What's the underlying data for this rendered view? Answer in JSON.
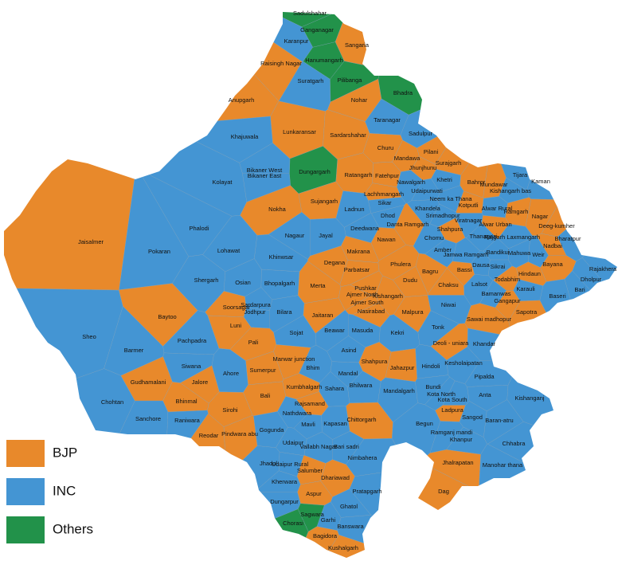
{
  "map": {
    "constituencies": [
      {
        "name": "Sadulshahar",
        "party": "Others"
      },
      {
        "name": "Ganganagar",
        "party": "Others"
      },
      {
        "name": "Karanpur",
        "party": "INC"
      },
      {
        "name": "Sangaria",
        "party": "BJP"
      },
      {
        "name": "Raisingh Nagar",
        "party": "BJP"
      },
      {
        "name": "Hanumangarh",
        "party": "Others"
      },
      {
        "name": "Suratgarh",
        "party": "INC"
      },
      {
        "name": "Pilibanga",
        "party": "Others"
      },
      {
        "name": "Bhadra",
        "party": "Others"
      },
      {
        "name": "Anupgarh",
        "party": "BJP"
      },
      {
        "name": "Nohar",
        "party": "BJP"
      },
      {
        "name": "Taranagar",
        "party": "INC"
      },
      {
        "name": "Lunkaransar",
        "party": "BJP"
      },
      {
        "name": "Sardarshahar",
        "party": "BJP"
      },
      {
        "name": "Sadulpur",
        "party": "INC"
      },
      {
        "name": "Khajuwala",
        "party": "INC"
      },
      {
        "name": "Churu",
        "party": "BJP"
      },
      {
        "name": "Pilani",
        "party": "BJP"
      },
      {
        "name": "Mandawa",
        "party": "BJP"
      },
      {
        "name": "Surajgarh",
        "party": "BJP"
      },
      {
        "name": "Jhunjhunu",
        "party": "BJP"
      },
      {
        "name": "Dungargarh",
        "party": "Others"
      },
      {
        "name": "Ratangarh",
        "party": "BJP"
      },
      {
        "name": "Fatehpur",
        "party": "BJP"
      },
      {
        "name": "Khetri",
        "party": "INC"
      },
      {
        "name": "Bikaner West",
        "party": "INC"
      },
      {
        "name": "Bikaner East",
        "party": "INC"
      },
      {
        "name": "Kolayat",
        "party": "INC"
      },
      {
        "name": "Nawalgarh",
        "party": "INC"
      },
      {
        "name": "Udaipurwati",
        "party": "INC"
      },
      {
        "name": "Tijara",
        "party": "INC"
      },
      {
        "name": "Mundawar",
        "party": "BJP"
      },
      {
        "name": "Bahror",
        "party": "BJP"
      },
      {
        "name": "Kishangarh bas",
        "party": "INC"
      },
      {
        "name": "Kaman",
        "party": "INC"
      },
      {
        "name": "Lachhmangarh",
        "party": "BJP"
      },
      {
        "name": "Neem ka Thana",
        "party": "INC"
      },
      {
        "name": "Kotputli",
        "party": "BJP"
      },
      {
        "name": "Alwar Rural",
        "party": "INC"
      },
      {
        "name": "Ramgarh",
        "party": "BJP"
      },
      {
        "name": "Nagar",
        "party": "BJP"
      },
      {
        "name": "Sujangarh",
        "party": "BJP"
      },
      {
        "name": "Ladnun",
        "party": "INC"
      },
      {
        "name": "Nokha",
        "party": "BJP"
      },
      {
        "name": "Sikar",
        "party": "INC"
      },
      {
        "name": "Khandela",
        "party": "INC"
      },
      {
        "name": "Dhod",
        "party": "INC"
      },
      {
        "name": "Srimadhopur",
        "party": "INC"
      },
      {
        "name": "Alwar Urban",
        "party": "BJP"
      },
      {
        "name": "Deeg-kumher",
        "party": "BJP"
      },
      {
        "name": "Danta Ramgarh",
        "party": "BJP"
      },
      {
        "name": "Viratnagar",
        "party": "INC"
      },
      {
        "name": "Jaisalmer",
        "party": "BJP"
      },
      {
        "name": "Phalodi",
        "party": "INC"
      },
      {
        "name": "Nagaur",
        "party": "INC"
      },
      {
        "name": "Jayal",
        "party": "INC"
      },
      {
        "name": "Deedwana",
        "party": "INC"
      },
      {
        "name": "Shahpura",
        "party": "BJP"
      },
      {
        "name": "Chomu",
        "party": "INC"
      },
      {
        "name": "Thanagazi",
        "party": "INC"
      },
      {
        "name": "Rajgarh Laxmangarh",
        "party": "INC"
      },
      {
        "name": "Bharatpur",
        "party": "INC"
      },
      {
        "name": "Pokaran",
        "party": "INC"
      },
      {
        "name": "Lohawat",
        "party": "INC"
      },
      {
        "name": "Nawan",
        "party": "BJP"
      },
      {
        "name": "Nadbai",
        "party": "BJP"
      },
      {
        "name": "Khinwsar",
        "party": "INC"
      },
      {
        "name": "Makrana",
        "party": "BJP"
      },
      {
        "name": "Jamwa Ramgarh",
        "party": "INC"
      },
      {
        "name": "Bandikui",
        "party": "INC"
      },
      {
        "name": "Mahuwa",
        "party": "INC"
      },
      {
        "name": "Weir",
        "party": "INC"
      },
      {
        "name": "Amber",
        "party": "INC"
      },
      {
        "name": "Degana",
        "party": "BJP"
      },
      {
        "name": "Phulera",
        "party": "BJP"
      },
      {
        "name": "Bassi",
        "party": "BJP"
      },
      {
        "name": "Dausa",
        "party": "INC"
      },
      {
        "name": "Sikrai",
        "party": "INC"
      },
      {
        "name": "Bayana",
        "party": "BJP"
      },
      {
        "name": "Rajakhera",
        "party": "INC"
      },
      {
        "name": "Shergarh",
        "party": "INC"
      },
      {
        "name": "Parbatsar",
        "party": "BJP"
      },
      {
        "name": "Bagru",
        "party": "BJP"
      },
      {
        "name": "Hindaun",
        "party": "BJP"
      },
      {
        "name": "Dholpur",
        "party": "INC"
      },
      {
        "name": "Osian",
        "party": "INC"
      },
      {
        "name": "Bhopalgarh",
        "party": "INC"
      },
      {
        "name": "Merta",
        "party": "BJP"
      },
      {
        "name": "Dudu",
        "party": "BJP"
      },
      {
        "name": "Todabhim",
        "party": "BJP"
      },
      {
        "name": "Chaksu",
        "party": "BJP"
      },
      {
        "name": "Lalsot",
        "party": "INC"
      },
      {
        "name": "Bari",
        "party": "INC"
      },
      {
        "name": "Pushkar",
        "party": "BJP"
      },
      {
        "name": "Ajmer North",
        "party": "BJP"
      },
      {
        "name": "Kishangarh",
        "party": "BJP"
      },
      {
        "name": "Bamanwas",
        "party": "INC"
      },
      {
        "name": "Karauli",
        "party": "INC"
      },
      {
        "name": "Baseri",
        "party": "INC"
      },
      {
        "name": "Ajmer South",
        "party": "BJP"
      },
      {
        "name": "Gangapur",
        "party": "BJP"
      },
      {
        "name": "Nasirabad",
        "party": "BJP"
      },
      {
        "name": "Soorsagar",
        "party": "BJP"
      },
      {
        "name": "Sardarpura",
        "party": "INC"
      },
      {
        "name": "Jodhpur",
        "party": "INC"
      },
      {
        "name": "Bilara",
        "party": "INC"
      },
      {
        "name": "Jaitaran",
        "party": "BJP"
      },
      {
        "name": "Malpura",
        "party": "BJP"
      },
      {
        "name": "Niwai",
        "party": "INC"
      },
      {
        "name": "Sawai madhopur",
        "party": "BJP"
      },
      {
        "name": "Sapotra",
        "party": "BJP"
      },
      {
        "name": "Baytoo",
        "party": "BJP"
      },
      {
        "name": "Luni",
        "party": "BJP"
      },
      {
        "name": "Sojat",
        "party": "INC"
      },
      {
        "name": "Beawar",
        "party": "INC"
      },
      {
        "name": "Masuda",
        "party": "INC"
      },
      {
        "name": "Kekri",
        "party": "INC"
      },
      {
        "name": "Tonk",
        "party": "INC"
      },
      {
        "name": "Sheo",
        "party": "INC"
      },
      {
        "name": "Pachpadra",
        "party": "INC"
      },
      {
        "name": "Pali",
        "party": "BJP"
      },
      {
        "name": "Deoli - uniara",
        "party": "BJP"
      },
      {
        "name": "Khandar",
        "party": "INC"
      },
      {
        "name": "Barmer",
        "party": "INC"
      },
      {
        "name": "Asind",
        "party": "INC"
      },
      {
        "name": "Marwar junction",
        "party": "BJP"
      },
      {
        "name": "Bhim",
        "party": "INC"
      },
      {
        "name": "Siwana",
        "party": "INC"
      },
      {
        "name": "Ahore",
        "party": "INC"
      },
      {
        "name": "Sumerpur",
        "party": "BJP"
      },
      {
        "name": "Shahpura",
        "party": "BJP"
      },
      {
        "name": "Jahazpur",
        "party": "BJP"
      },
      {
        "name": "Hindoli",
        "party": "INC"
      },
      {
        "name": "Kesholaipatan",
        "party": "INC"
      },
      {
        "name": "Mandal",
        "party": "INC"
      },
      {
        "name": "Pipalda",
        "party": "INC"
      },
      {
        "name": "Gudhamalani",
        "party": "BJP"
      },
      {
        "name": "Jalore",
        "party": "BJP"
      },
      {
        "name": "Bundi",
        "party": "INC"
      },
      {
        "name": "Sahara",
        "party": "INC"
      },
      {
        "name": "Bhilwara",
        "party": "INC"
      },
      {
        "name": "Kumbhalgarh",
        "party": "BJP"
      },
      {
        "name": "Mandalgarh",
        "party": "INC"
      },
      {
        "name": "Anta",
        "party": "INC"
      },
      {
        "name": "Kishanganj",
        "party": "INC"
      },
      {
        "name": "Bhinmal",
        "party": "BJP"
      },
      {
        "name": "Bali",
        "party": "BJP"
      },
      {
        "name": "Kota North",
        "party": "INC"
      },
      {
        "name": "Kota South",
        "party": "INC"
      },
      {
        "name": "Rajsamand",
        "party": "BJP"
      },
      {
        "name": "Chohtan",
        "party": "INC"
      },
      {
        "name": "Ladpura",
        "party": "BJP"
      },
      {
        "name": "Sirohi",
        "party": "BJP"
      },
      {
        "name": "Nathdwara",
        "party": "INC"
      },
      {
        "name": "Sanchore",
        "party": "INC"
      },
      {
        "name": "Raniwara",
        "party": "INC"
      },
      {
        "name": "Chittorgarh",
        "party": "BJP"
      },
      {
        "name": "Kapasan",
        "party": "INC"
      },
      {
        "name": "Begun",
        "party": "INC"
      },
      {
        "name": "Sangod",
        "party": "INC"
      },
      {
        "name": "Baran-atru",
        "party": "INC"
      },
      {
        "name": "Pindwara abu",
        "party": "BJP"
      },
      {
        "name": "Gogunda",
        "party": "INC"
      },
      {
        "name": "Mavli",
        "party": "INC"
      },
      {
        "name": "Ramganj mandi",
        "party": "INC"
      },
      {
        "name": "Reodar",
        "party": "BJP"
      },
      {
        "name": "Udaipur",
        "party": "INC"
      },
      {
        "name": "Vallabh Nagar",
        "party": "INC"
      },
      {
        "name": "Bari sadri",
        "party": "INC"
      },
      {
        "name": "Khanpur",
        "party": "INC"
      },
      {
        "name": "Chhabra",
        "party": "INC"
      },
      {
        "name": "Jhadol",
        "party": "INC"
      },
      {
        "name": "Udaipur Rural",
        "party": "INC"
      },
      {
        "name": "Nimbahera",
        "party": "INC"
      },
      {
        "name": "Jhalrapatan",
        "party": "BJP"
      },
      {
        "name": "Manohar thana",
        "party": "INC"
      },
      {
        "name": "Salumber",
        "party": "BJP"
      },
      {
        "name": "Dhariawad",
        "party": "BJP"
      },
      {
        "name": "Kherwara",
        "party": "INC"
      },
      {
        "name": "Pratapgarh",
        "party": "INC"
      },
      {
        "name": "Dag",
        "party": "BJP"
      },
      {
        "name": "Aspur",
        "party": "BJP"
      },
      {
        "name": "Dungarpur",
        "party": "INC"
      },
      {
        "name": "Ghatol",
        "party": "INC"
      },
      {
        "name": "Sagwara",
        "party": "Others"
      },
      {
        "name": "Chorasi",
        "party": "Others"
      },
      {
        "name": "Garhi",
        "party": "INC"
      },
      {
        "name": "Banswara",
        "party": "INC"
      },
      {
        "name": "Bagidora",
        "party": "BJP"
      },
      {
        "name": "Kushalgarh",
        "party": "BJP"
      }
    ]
  },
  "legend": [
    {
      "label": "BJP",
      "color": "#e8892b"
    },
    {
      "label": "INC",
      "color": "#4495d3"
    },
    {
      "label": "Others",
      "color": "#22924a"
    }
  ]
}
